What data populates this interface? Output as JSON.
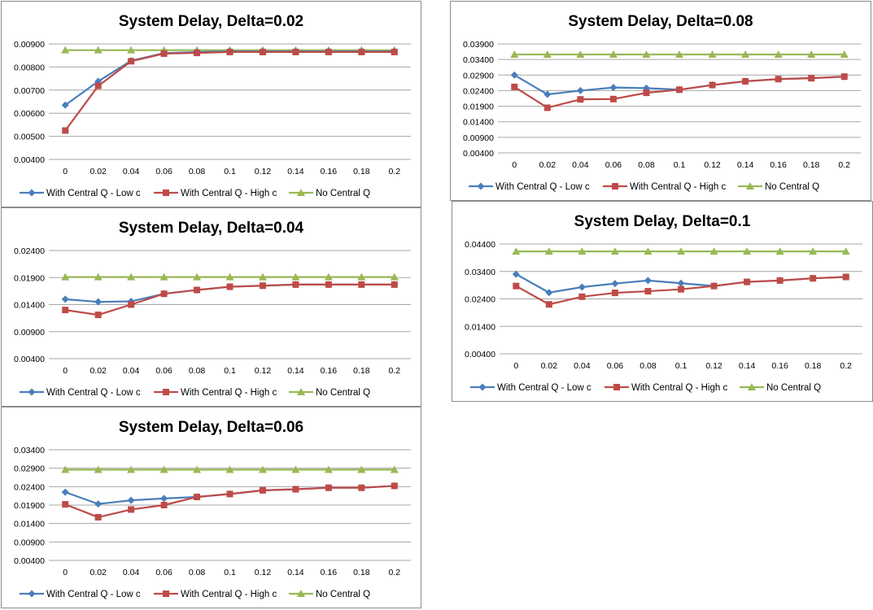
{
  "chart_data": [
    {
      "type": "line",
      "title": "System Delay, Delta=0.02",
      "xlabel": "",
      "ylabel": "",
      "categories": [
        "0",
        "0.02",
        "0.04",
        "0.06",
        "0.08",
        "0.1",
        "0.12",
        "0.14",
        "0.16",
        "0.18",
        "0.2"
      ],
      "ylim": [
        0.004,
        0.009
      ],
      "yticks": [
        "0.00900",
        "0.00800",
        "0.00700",
        "0.00600",
        "0.00500",
        "0.00400"
      ],
      "grid": true,
      "legend": "bottom",
      "series": [
        {
          "name": "With Central Q - Low c",
          "color": "#4a7ebb",
          "marker": "diamond",
          "values": [
            0.00635,
            0.00738,
            0.00827,
            0.0086,
            0.00865,
            0.00868,
            0.00868,
            0.00868,
            0.00868,
            0.00868,
            0.00868
          ]
        },
        {
          "name": "With Central Q - High c",
          "color": "#be4b48",
          "marker": "square",
          "values": [
            0.00525,
            0.00718,
            0.00825,
            0.00858,
            0.00861,
            0.00865,
            0.00865,
            0.00865,
            0.00865,
            0.00865,
            0.00865
          ]
        },
        {
          "name": "No Central Q",
          "color": "#98b954",
          "marker": "triangle",
          "values": [
            0.00873,
            0.00873,
            0.00873,
            0.00873,
            0.00873,
            0.00873,
            0.00873,
            0.00873,
            0.00873,
            0.00873,
            0.00873
          ]
        }
      ]
    },
    {
      "type": "line",
      "title": "System Delay, Delta=0.04",
      "xlabel": "",
      "ylabel": "",
      "categories": [
        "0",
        "0.02",
        "0.04",
        "0.06",
        "0.08",
        "0.1",
        "0.12",
        "0.14",
        "0.16",
        "0.18",
        "0.2"
      ],
      "ylim": [
        0.004,
        0.024
      ],
      "yticks": [
        "0.02400",
        "0.01900",
        "0.01400",
        "0.00900",
        "0.00400"
      ],
      "grid": true,
      "legend": "bottom",
      "series": [
        {
          "name": "With Central Q - Low c",
          "color": "#4a7ebb",
          "marker": "diamond",
          "values": [
            0.015,
            0.0145,
            0.0146,
            0.016,
            0.0167,
            0.0173,
            0.0175,
            0.0177,
            0.0177,
            0.0177,
            0.0177
          ]
        },
        {
          "name": "With Central Q - High c",
          "color": "#be4b48",
          "marker": "square",
          "values": [
            0.013,
            0.0121,
            0.014,
            0.016,
            0.0167,
            0.0173,
            0.0175,
            0.0177,
            0.0177,
            0.0177,
            0.0177
          ]
        },
        {
          "name": "No Central Q",
          "color": "#98b954",
          "marker": "triangle",
          "values": [
            0.0191,
            0.0191,
            0.0191,
            0.0191,
            0.0191,
            0.0191,
            0.0191,
            0.0191,
            0.0191,
            0.0191,
            0.0191
          ]
        }
      ]
    },
    {
      "type": "line",
      "title": "System Delay, Delta=0.06",
      "xlabel": "",
      "ylabel": "",
      "categories": [
        "0",
        "0.02",
        "0.04",
        "0.06",
        "0.08",
        "0.1",
        "0.12",
        "0.14",
        "0.16",
        "0.18",
        "0.2"
      ],
      "ylim": [
        0.004,
        0.034
      ],
      "yticks": [
        "0.03400",
        "0.02900",
        "0.02400",
        "0.01900",
        "0.01400",
        "0.00900",
        "0.00400"
      ],
      "grid": true,
      "legend": "bottom",
      "series": [
        {
          "name": "With Central Q - Low c",
          "color": "#4a7ebb",
          "marker": "diamond",
          "values": [
            0.0225,
            0.0193,
            0.0203,
            0.0208,
            0.0212,
            0.022,
            0.023,
            0.0233,
            0.0237,
            0.0237,
            0.0242
          ]
        },
        {
          "name": "With Central Q - High c",
          "color": "#be4b48",
          "marker": "square",
          "values": [
            0.0192,
            0.0157,
            0.0178,
            0.019,
            0.0212,
            0.022,
            0.023,
            0.0233,
            0.0237,
            0.0237,
            0.0242
          ]
        },
        {
          "name": "No Central Q",
          "color": "#98b954",
          "marker": "triangle",
          "values": [
            0.0286,
            0.0286,
            0.0286,
            0.0286,
            0.0286,
            0.0286,
            0.0286,
            0.0286,
            0.0286,
            0.0286,
            0.0286
          ]
        }
      ]
    },
    {
      "type": "line",
      "title": "System Delay, Delta=0.08",
      "xlabel": "",
      "ylabel": "",
      "categories": [
        "0",
        "0.02",
        "0.04",
        "0.06",
        "0.08",
        "0.1",
        "0.12",
        "0.14",
        "0.16",
        "0.18",
        "0.2"
      ],
      "ylim": [
        0.004,
        0.039
      ],
      "yticks": [
        "0.03900",
        "0.03400",
        "0.02900",
        "0.02400",
        "0.01900",
        "0.01400",
        "0.00900",
        "0.00400"
      ],
      "grid": true,
      "legend": "bottom",
      "series": [
        {
          "name": "With Central Q - Low c",
          "color": "#4a7ebb",
          "marker": "diamond",
          "values": [
            0.029,
            0.0228,
            0.024,
            0.025,
            0.0248,
            0.0243,
            0.0258,
            0.027,
            0.0277,
            0.028,
            0.0285
          ]
        },
        {
          "name": "With Central Q - High c",
          "color": "#be4b48",
          "marker": "square",
          "values": [
            0.0252,
            0.0185,
            0.0212,
            0.0213,
            0.0233,
            0.0243,
            0.0258,
            0.027,
            0.0277,
            0.028,
            0.0285
          ]
        },
        {
          "name": "No Central Q",
          "color": "#98b954",
          "marker": "triangle",
          "values": [
            0.0356,
            0.0356,
            0.0356,
            0.0356,
            0.0356,
            0.0356,
            0.0356,
            0.0356,
            0.0356,
            0.0356,
            0.0356
          ]
        }
      ]
    },
    {
      "type": "line",
      "title": "System Delay, Delta=0.1",
      "xlabel": "",
      "ylabel": "",
      "categories": [
        "0",
        "0.02",
        "0.04",
        "0.06",
        "0.08",
        "0.1",
        "0.12",
        "0.14",
        "0.16",
        "0.18",
        "0.2"
      ],
      "ylim": [
        0.004,
        0.044
      ],
      "yticks": [
        "0.04400",
        "0.03400",
        "0.02400",
        "0.01400",
        "0.00400"
      ],
      "grid": true,
      "legend": "bottom",
      "series": [
        {
          "name": "With Central Q - Low c",
          "color": "#4a7ebb",
          "marker": "diamond",
          "values": [
            0.033,
            0.0263,
            0.0283,
            0.0296,
            0.0307,
            0.0297,
            0.0287,
            0.0302,
            0.0307,
            0.0315,
            0.032
          ]
        },
        {
          "name": "With Central Q - High c",
          "color": "#be4b48",
          "marker": "square",
          "values": [
            0.0287,
            0.022,
            0.0248,
            0.0262,
            0.0268,
            0.0275,
            0.0287,
            0.0302,
            0.0307,
            0.0315,
            0.032
          ]
        },
        {
          "name": "No Central Q",
          "color": "#98b954",
          "marker": "triangle",
          "values": [
            0.0413,
            0.0413,
            0.0413,
            0.0413,
            0.0413,
            0.0413,
            0.0413,
            0.0413,
            0.0413,
            0.0413,
            0.0413
          ]
        }
      ]
    }
  ]
}
